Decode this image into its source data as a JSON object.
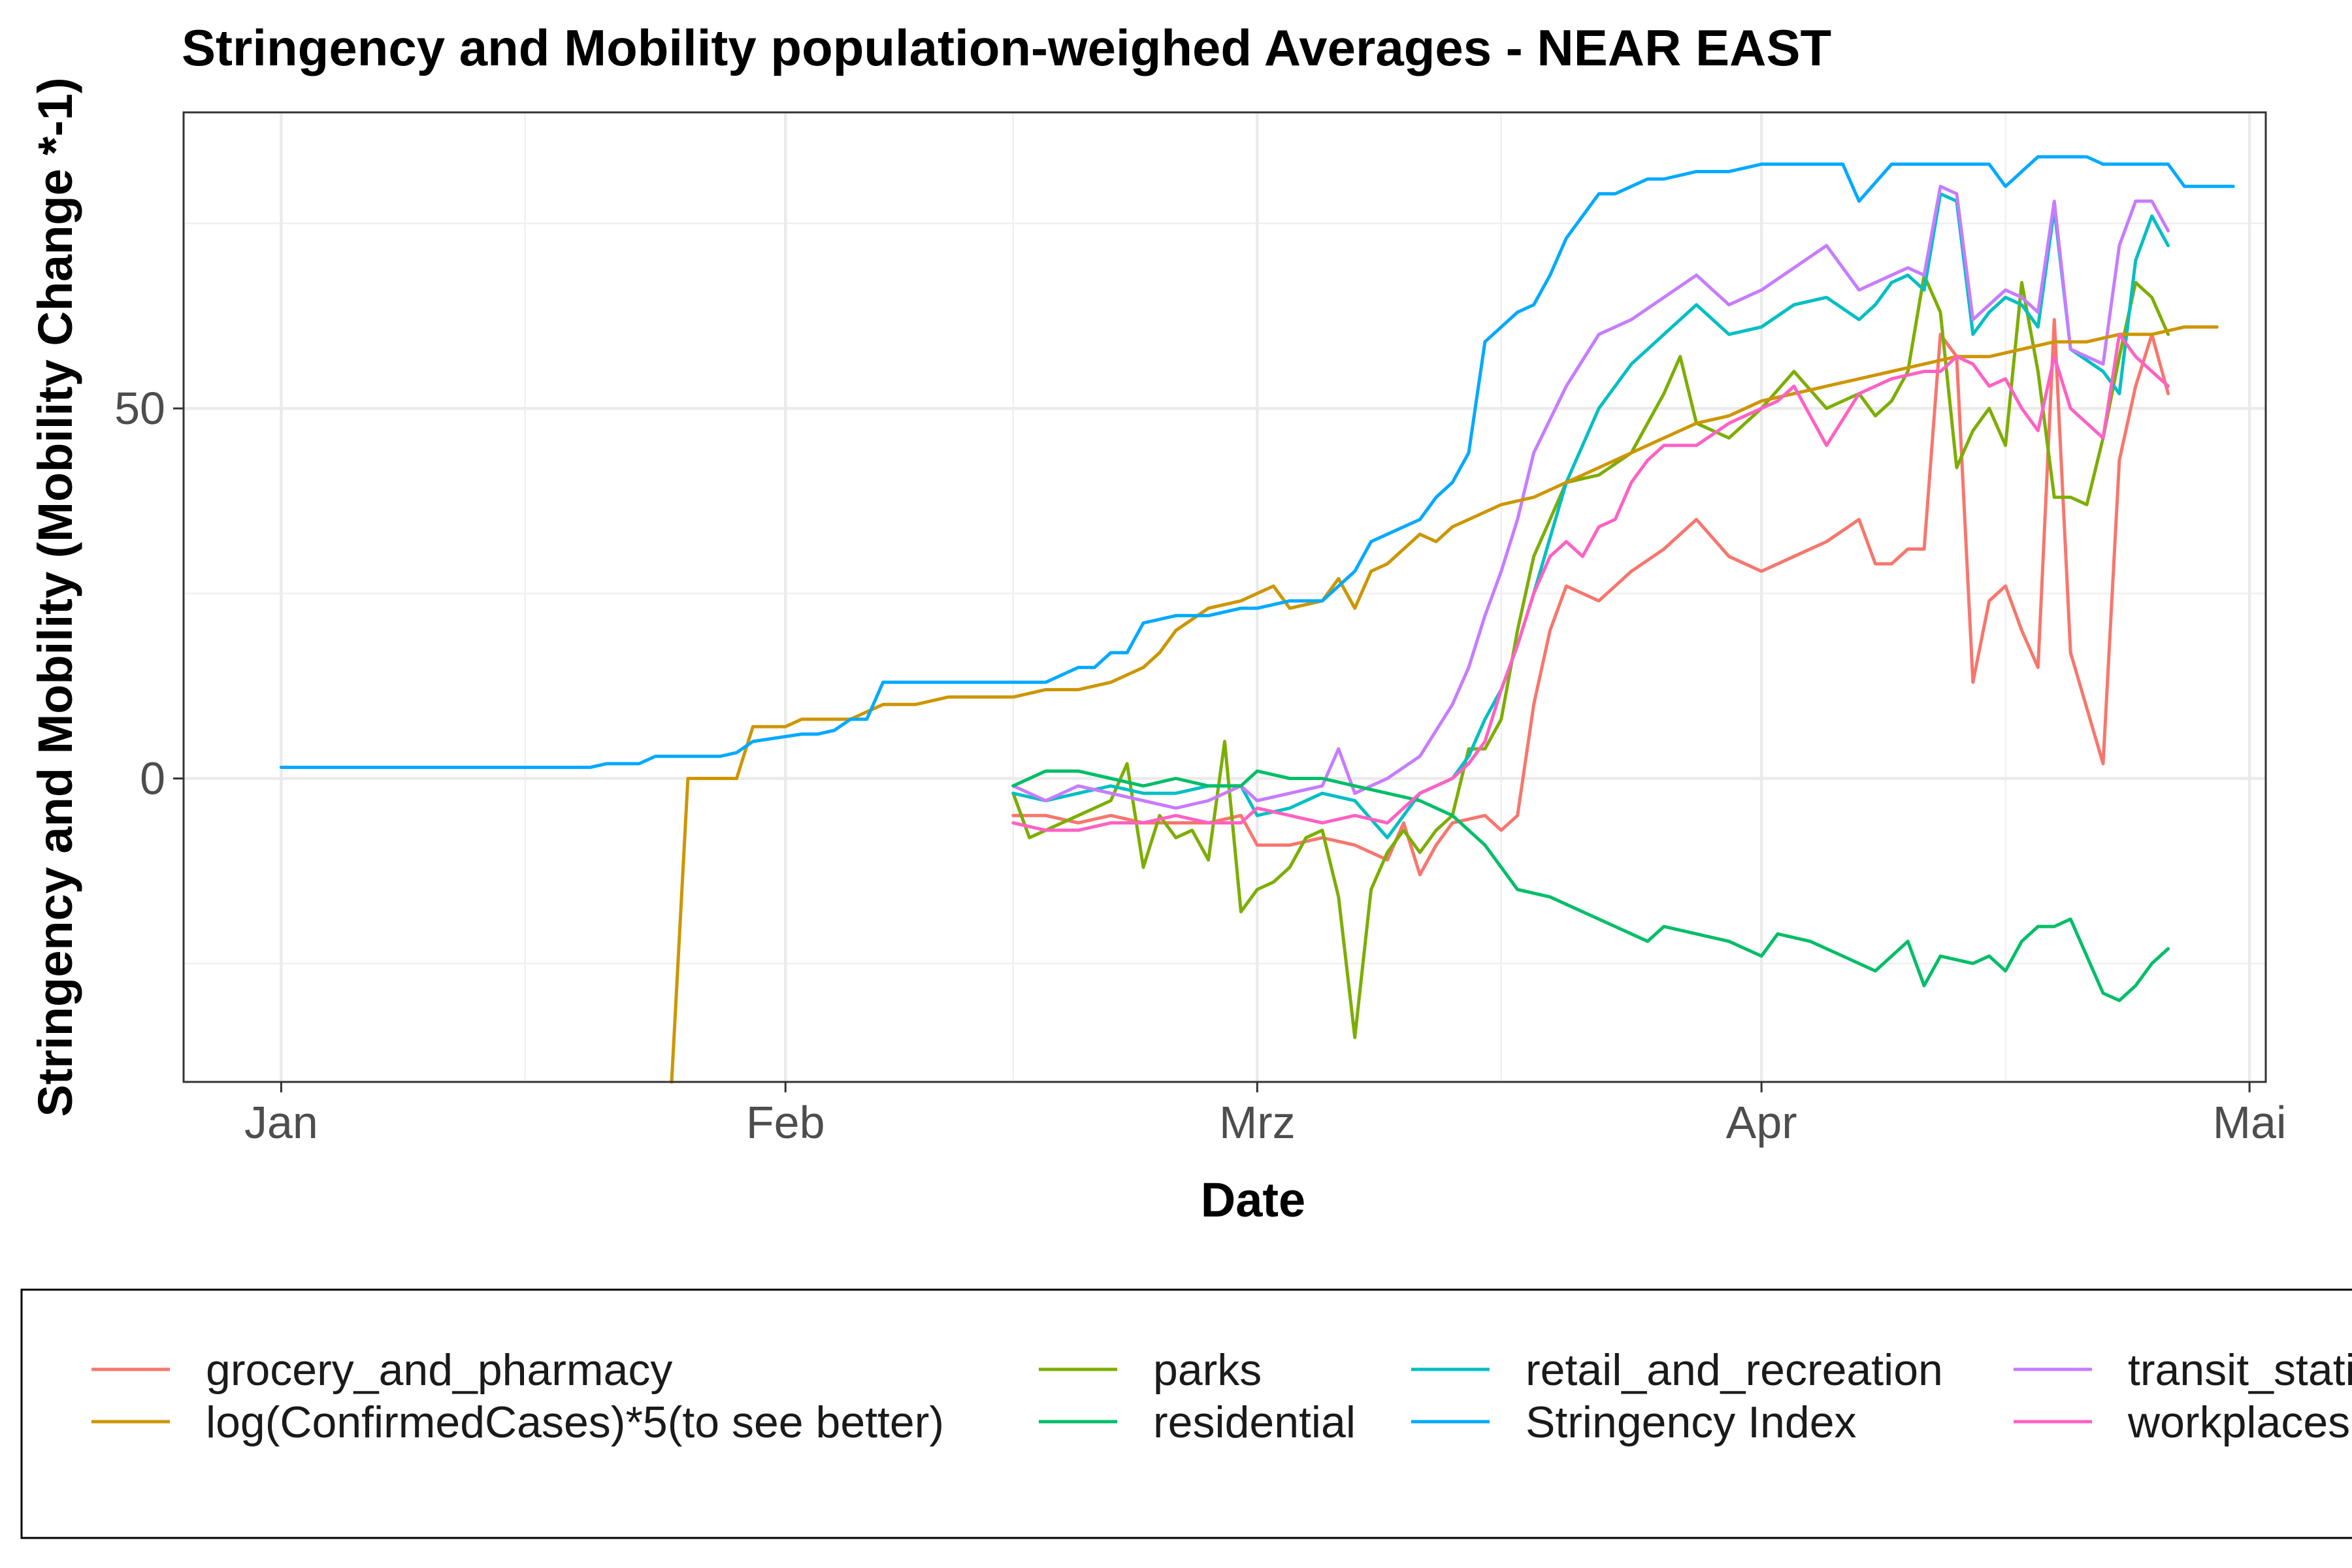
{
  "chart_data": {
    "type": "line",
    "title": "Stringency and Mobility population-weighed Averages - NEAR EAST",
    "xlabel": "Date",
    "ylabel": "Stringency and Mobility (Mobility Change *-1)",
    "x_ticks": [
      "Jan",
      "Feb",
      "Mrz",
      "Apr",
      "Mai"
    ],
    "x_tick_dates": [
      "2020-01-01",
      "2020-02-01",
      "2020-03-01",
      "2020-04-01",
      "2020-05-01"
    ],
    "y_ticks": [
      0,
      50
    ],
    "xlim": [
      "2019-12-26",
      "2020-05-02"
    ],
    "ylim": [
      -41,
      90
    ],
    "grid": true,
    "legend_position": "bottom",
    "series": [
      {
        "name": "grocery_and_pharmacy",
        "color": "#F8766D",
        "x": [
          "2020-02-15",
          "2020-02-17",
          "2020-02-19",
          "2020-02-21",
          "2020-02-23",
          "2020-02-25",
          "2020-02-27",
          "2020-02-29",
          "2020-03-01",
          "2020-03-03",
          "2020-03-05",
          "2020-03-07",
          "2020-03-09",
          "2020-03-10",
          "2020-03-11",
          "2020-03-12",
          "2020-03-13",
          "2020-03-15",
          "2020-03-16",
          "2020-03-17",
          "2020-03-18",
          "2020-03-19",
          "2020-03-20",
          "2020-03-22",
          "2020-03-24",
          "2020-03-26",
          "2020-03-28",
          "2020-03-30",
          "2020-04-01",
          "2020-04-03",
          "2020-04-05",
          "2020-04-07",
          "2020-04-08",
          "2020-04-09",
          "2020-04-10",
          "2020-04-11",
          "2020-04-12",
          "2020-04-13",
          "2020-04-14",
          "2020-04-15",
          "2020-04-16",
          "2020-04-17",
          "2020-04-18",
          "2020-04-19",
          "2020-04-20",
          "2020-04-22",
          "2020-04-23",
          "2020-04-24",
          "2020-04-25",
          "2020-04-26"
        ],
        "y": [
          -5,
          -5,
          -6,
          -5,
          -6,
          -6,
          -6,
          -5,
          -9,
          -9,
          -8,
          -9,
          -11,
          -6,
          -13,
          -9,
          -6,
          -5,
          -7,
          -5,
          10,
          20,
          26,
          24,
          28,
          31,
          35,
          30,
          28,
          30,
          32,
          35,
          29,
          29,
          31,
          31,
          60,
          57,
          13,
          24,
          26,
          20,
          15,
          62,
          17,
          2,
          43,
          53,
          60,
          52
        ]
      },
      {
        "name": "parks",
        "color": "#7CAE00",
        "x": [
          "2020-02-15",
          "2020-02-16",
          "2020-02-17",
          "2020-02-18",
          "2020-02-19",
          "2020-02-20",
          "2020-02-21",
          "2020-02-22",
          "2020-02-23",
          "2020-02-24",
          "2020-02-25",
          "2020-02-26",
          "2020-02-27",
          "2020-02-28",
          "2020-02-29",
          "2020-03-01",
          "2020-03-02",
          "2020-03-03",
          "2020-03-04",
          "2020-03-05",
          "2020-03-06",
          "2020-03-07",
          "2020-03-08",
          "2020-03-09",
          "2020-03-10",
          "2020-03-11",
          "2020-03-12",
          "2020-03-13",
          "2020-03-14",
          "2020-03-15",
          "2020-03-16",
          "2020-03-17",
          "2020-03-18",
          "2020-03-20",
          "2020-03-22",
          "2020-03-24",
          "2020-03-26",
          "2020-03-27",
          "2020-03-28",
          "2020-03-30",
          "2020-04-01",
          "2020-04-03",
          "2020-04-05",
          "2020-04-07",
          "2020-04-08",
          "2020-04-09",
          "2020-04-10",
          "2020-04-11",
          "2020-04-12",
          "2020-04-13",
          "2020-04-14",
          "2020-04-15",
          "2020-04-16",
          "2020-04-17",
          "2020-04-18",
          "2020-04-19",
          "2020-04-20",
          "2020-04-21",
          "2020-04-22",
          "2020-04-23",
          "2020-04-24",
          "2020-04-25",
          "2020-04-26"
        ],
        "y": [
          -2,
          -8,
          -7,
          -6,
          -5,
          -4,
          -3,
          2,
          -12,
          -5,
          -8,
          -7,
          -11,
          5,
          -18,
          -15,
          -14,
          -12,
          -8,
          -7,
          -16,
          -35,
          -15,
          -10,
          -7,
          -10,
          -7,
          -5,
          4,
          4,
          8,
          20,
          30,
          40,
          41,
          44,
          52,
          57,
          48,
          46,
          50,
          55,
          50,
          52,
          49,
          51,
          55,
          68,
          63,
          42,
          47,
          50,
          45,
          67,
          55,
          38,
          38,
          37,
          46,
          57,
          67,
          65,
          60
        ]
      },
      {
        "name": "retail_and_recreation",
        "color": "#00BFC4",
        "x": [
          "2020-02-15",
          "2020-02-17",
          "2020-02-19",
          "2020-02-21",
          "2020-02-23",
          "2020-02-25",
          "2020-02-27",
          "2020-02-29",
          "2020-03-01",
          "2020-03-03",
          "2020-03-05",
          "2020-03-07",
          "2020-03-09",
          "2020-03-11",
          "2020-03-13",
          "2020-03-14",
          "2020-03-15",
          "2020-03-16",
          "2020-03-17",
          "2020-03-18",
          "2020-03-20",
          "2020-03-22",
          "2020-03-24",
          "2020-03-26",
          "2020-03-28",
          "2020-03-30",
          "2020-04-01",
          "2020-04-03",
          "2020-04-05",
          "2020-04-07",
          "2020-04-08",
          "2020-04-09",
          "2020-04-10",
          "2020-04-11",
          "2020-04-12",
          "2020-04-13",
          "2020-04-14",
          "2020-04-15",
          "2020-04-16",
          "2020-04-17",
          "2020-04-18",
          "2020-04-19",
          "2020-04-20",
          "2020-04-22",
          "2020-04-23",
          "2020-04-24",
          "2020-04-25",
          "2020-04-26"
        ],
        "y": [
          -2,
          -3,
          -2,
          -1,
          -2,
          -2,
          -1,
          -1,
          -5,
          -4,
          -2,
          -3,
          -8,
          -2,
          0,
          3,
          8,
          12,
          18,
          25,
          40,
          50,
          56,
          60,
          64,
          60,
          61,
          64,
          65,
          62,
          64,
          67,
          68,
          66,
          79,
          78,
          60,
          63,
          65,
          64,
          61,
          77,
          58,
          55,
          52,
          70,
          76,
          72
        ]
      },
      {
        "name": "transit_stations",
        "color": "#C77CFF",
        "x": [
          "2020-02-15",
          "2020-02-17",
          "2020-02-19",
          "2020-02-21",
          "2020-02-23",
          "2020-02-25",
          "2020-02-27",
          "2020-02-29",
          "2020-03-01",
          "2020-03-03",
          "2020-03-05",
          "2020-03-06",
          "2020-03-07",
          "2020-03-08",
          "2020-03-09",
          "2020-03-11",
          "2020-03-13",
          "2020-03-14",
          "2020-03-15",
          "2020-03-16",
          "2020-03-17",
          "2020-03-18",
          "2020-03-20",
          "2020-03-22",
          "2020-03-24",
          "2020-03-26",
          "2020-03-28",
          "2020-03-30",
          "2020-04-01",
          "2020-04-03",
          "2020-04-05",
          "2020-04-07",
          "2020-04-08",
          "2020-04-09",
          "2020-04-10",
          "2020-04-11",
          "2020-04-12",
          "2020-04-13",
          "2020-04-14",
          "2020-04-15",
          "2020-04-16",
          "2020-04-17",
          "2020-04-18",
          "2020-04-19",
          "2020-04-20",
          "2020-04-22",
          "2020-04-23",
          "2020-04-24",
          "2020-04-25",
          "2020-04-26"
        ],
        "y": [
          -1,
          -3,
          -1,
          -2,
          -3,
          -4,
          -3,
          -1,
          -3,
          -2,
          -1,
          4,
          -2,
          -1,
          0,
          3,
          10,
          15,
          22,
          28,
          35,
          44,
          53,
          60,
          62,
          65,
          68,
          64,
          66,
          69,
          72,
          66,
          67,
          68,
          69,
          68,
          80,
          79,
          62,
          64,
          66,
          65,
          63,
          78,
          58,
          56,
          72,
          78,
          78,
          74
        ]
      },
      {
        "name": "log(ConfirmedCases)*5(to see better)",
        "color": "#CD9600",
        "x": [
          "2020-01-25",
          "2020-01-26",
          "2020-01-27",
          "2020-01-29",
          "2020-01-30",
          "2020-02-01",
          "2020-02-02",
          "2020-02-03",
          "2020-02-05",
          "2020-02-07",
          "2020-02-09",
          "2020-02-11",
          "2020-02-13",
          "2020-02-15",
          "2020-02-17",
          "2020-02-19",
          "2020-02-21",
          "2020-02-23",
          "2020-02-24",
          "2020-02-25",
          "2020-02-27",
          "2020-02-29",
          "2020-03-01",
          "2020-03-02",
          "2020-03-03",
          "2020-03-05",
          "2020-03-06",
          "2020-03-07",
          "2020-03-08",
          "2020-03-09",
          "2020-03-11",
          "2020-03-12",
          "2020-03-13",
          "2020-03-14",
          "2020-03-16",
          "2020-03-18",
          "2020-03-20",
          "2020-03-22",
          "2020-03-24",
          "2020-03-26",
          "2020-03-28",
          "2020-03-30",
          "2020-04-01",
          "2020-04-03",
          "2020-04-05",
          "2020-04-07",
          "2020-04-09",
          "2020-04-11",
          "2020-04-13",
          "2020-04-15",
          "2020-04-17",
          "2020-04-19",
          "2020-04-21",
          "2020-04-23",
          "2020-04-25",
          "2020-04-27",
          "2020-04-29"
        ],
        "y": [
          -41,
          0,
          0,
          0,
          7,
          7,
          8,
          8,
          8,
          10,
          10,
          11,
          11,
          11,
          12,
          12,
          13,
          15,
          17,
          20,
          23,
          24,
          25,
          26,
          23,
          24,
          27,
          23,
          28,
          29,
          33,
          32,
          34,
          35,
          37,
          38,
          40,
          42,
          44,
          46,
          48,
          49,
          51,
          52,
          53,
          54,
          55,
          56,
          57,
          57,
          58,
          59,
          59,
          60,
          60,
          61,
          61
        ]
      },
      {
        "name": "residential",
        "color": "#00BE67",
        "x": [
          "2020-02-15",
          "2020-02-17",
          "2020-02-19",
          "2020-02-21",
          "2020-02-23",
          "2020-02-25",
          "2020-02-27",
          "2020-02-29",
          "2020-03-01",
          "2020-03-03",
          "2020-03-05",
          "2020-03-07",
          "2020-03-09",
          "2020-03-11",
          "2020-03-13",
          "2020-03-15",
          "2020-03-17",
          "2020-03-19",
          "2020-03-21",
          "2020-03-23",
          "2020-03-25",
          "2020-03-26",
          "2020-03-28",
          "2020-03-30",
          "2020-04-01",
          "2020-04-02",
          "2020-04-04",
          "2020-04-06",
          "2020-04-08",
          "2020-04-10",
          "2020-04-11",
          "2020-04-12",
          "2020-04-14",
          "2020-04-15",
          "2020-04-16",
          "2020-04-17",
          "2020-04-18",
          "2020-04-19",
          "2020-04-20",
          "2020-04-22",
          "2020-04-23",
          "2020-04-24",
          "2020-04-25",
          "2020-04-26"
        ],
        "y": [
          -1,
          1,
          1,
          0,
          -1,
          0,
          -1,
          -1,
          1,
          0,
          0,
          -1,
          -2,
          -3,
          -5,
          -9,
          -15,
          -16,
          -18,
          -20,
          -22,
          -20,
          -21,
          -22,
          -24,
          -21,
          -22,
          -24,
          -26,
          -22,
          -28,
          -24,
          -25,
          -24,
          -26,
          -22,
          -20,
          -20,
          -19,
          -29,
          -30,
          -28,
          -25,
          -23
        ]
      },
      {
        "name": "Stringency Index",
        "color": "#00A9FF",
        "x": [
          "2020-01-01",
          "2020-01-15",
          "2020-01-20",
          "2020-01-21",
          "2020-01-22",
          "2020-01-23",
          "2020-01-24",
          "2020-01-28",
          "2020-01-29",
          "2020-01-30",
          "2020-02-02",
          "2020-02-03",
          "2020-02-04",
          "2020-02-05",
          "2020-02-06",
          "2020-02-07",
          "2020-02-08",
          "2020-02-09",
          "2020-02-10",
          "2020-02-17",
          "2020-02-19",
          "2020-02-20",
          "2020-02-21",
          "2020-02-22",
          "2020-02-23",
          "2020-02-25",
          "2020-02-27",
          "2020-02-29",
          "2020-03-01",
          "2020-03-03",
          "2020-03-05",
          "2020-03-07",
          "2020-03-08",
          "2020-03-09",
          "2020-03-10",
          "2020-03-11",
          "2020-03-12",
          "2020-03-13",
          "2020-03-14",
          "2020-03-15",
          "2020-03-16",
          "2020-03-17",
          "2020-03-18",
          "2020-03-19",
          "2020-03-20",
          "2020-03-21",
          "2020-03-22",
          "2020-03-23",
          "2020-03-24",
          "2020-03-25",
          "2020-03-26",
          "2020-03-28",
          "2020-03-30",
          "2020-04-01",
          "2020-04-03",
          "2020-04-05",
          "2020-04-06",
          "2020-04-07",
          "2020-04-09",
          "2020-04-11",
          "2020-04-13",
          "2020-04-14",
          "2020-04-15",
          "2020-04-16",
          "2020-04-17",
          "2020-04-18",
          "2020-04-19",
          "2020-04-21",
          "2020-04-22",
          "2020-04-23",
          "2020-04-24",
          "2020-04-25",
          "2020-04-26",
          "2020-04-27",
          "2020-04-28",
          "2020-04-29",
          "2020-04-30"
        ],
        "y": [
          1.5,
          1.5,
          1.5,
          2,
          2,
          2,
          3,
          3,
          3.5,
          5,
          6,
          6,
          6.5,
          8,
          8,
          13,
          13,
          13,
          13,
          13,
          15,
          15,
          17,
          17,
          21,
          22,
          22,
          23,
          23,
          24,
          24,
          28,
          32,
          33,
          34,
          35,
          38,
          40,
          44,
          59,
          61,
          63,
          64,
          68,
          73,
          76,
          79,
          79,
          80,
          81,
          81,
          82,
          82,
          83,
          83,
          83,
          83,
          78,
          83,
          83,
          83,
          83,
          83,
          80,
          82,
          84,
          84,
          84,
          83,
          83,
          83,
          83,
          83,
          80,
          80,
          80,
          80
        ]
      },
      {
        "name": "workplaces",
        "color": "#FF61C3",
        "x": [
          "2020-02-15",
          "2020-02-17",
          "2020-02-19",
          "2020-02-21",
          "2020-02-23",
          "2020-02-25",
          "2020-02-27",
          "2020-02-29",
          "2020-03-01",
          "2020-03-03",
          "2020-03-05",
          "2020-03-07",
          "2020-03-09",
          "2020-03-11",
          "2020-03-13",
          "2020-03-14",
          "2020-03-15",
          "2020-03-16",
          "2020-03-17",
          "2020-03-18",
          "2020-03-19",
          "2020-03-20",
          "2020-03-21",
          "2020-03-22",
          "2020-03-23",
          "2020-03-24",
          "2020-03-25",
          "2020-03-26",
          "2020-03-28",
          "2020-03-30",
          "2020-04-01",
          "2020-04-02",
          "2020-04-03",
          "2020-04-05",
          "2020-04-07",
          "2020-04-09",
          "2020-04-11",
          "2020-04-12",
          "2020-04-13",
          "2020-04-14",
          "2020-04-15",
          "2020-04-16",
          "2020-04-17",
          "2020-04-18",
          "2020-04-19",
          "2020-04-20",
          "2020-04-22",
          "2020-04-23",
          "2020-04-24",
          "2020-04-25",
          "2020-04-26"
        ],
        "y": [
          -6,
          -7,
          -7,
          -6,
          -6,
          -5,
          -6,
          -6,
          -4,
          -5,
          -6,
          -5,
          -6,
          -2,
          0,
          2,
          5,
          12,
          18,
          25,
          30,
          32,
          30,
          34,
          35,
          40,
          43,
          45,
          45,
          48,
          50,
          51,
          53,
          45,
          52,
          54,
          55,
          55,
          57,
          56,
          53,
          54,
          50,
          47,
          57,
          50,
          46,
          60,
          57,
          55,
          53
        ]
      }
    ]
  }
}
